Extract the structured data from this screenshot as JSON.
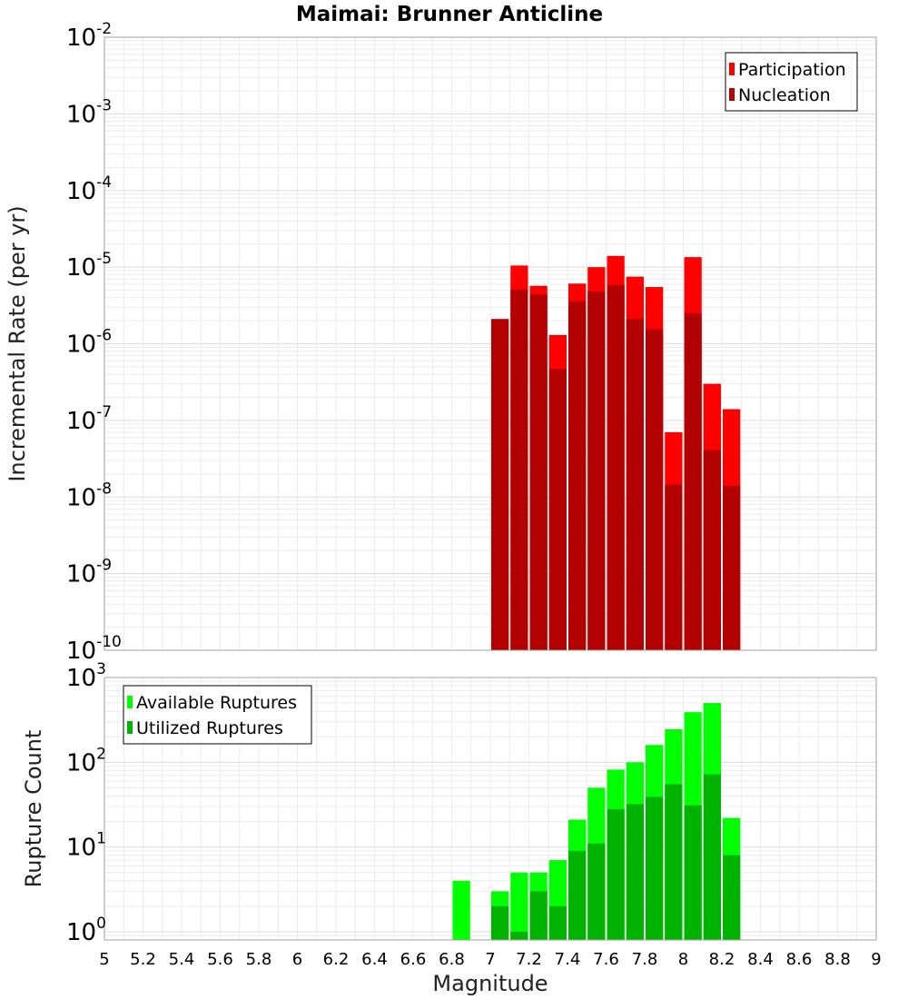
{
  "chart_data": [
    {
      "type": "bar",
      "title": "Maimai: Brunner Anticline",
      "ylabel": "Incremental Rate (per yr)",
      "yscale": "log",
      "ylim": [
        1e-10,
        0.01
      ],
      "xlim": [
        5,
        9
      ],
      "yticks": [
        {
          "base": "10",
          "exp": "-10",
          "value": 1e-10
        },
        {
          "base": "10",
          "exp": "-9",
          "value": 1e-09
        },
        {
          "base": "10",
          "exp": "-8",
          "value": 1e-08
        },
        {
          "base": "10",
          "exp": "-7",
          "value": 1e-07
        },
        {
          "base": "10",
          "exp": "-6",
          "value": 1e-06
        },
        {
          "base": "10",
          "exp": "-5",
          "value": 1e-05
        },
        {
          "base": "10",
          "exp": "-4",
          "value": 0.0001
        },
        {
          "base": "10",
          "exp": "-3",
          "value": 0.001
        },
        {
          "base": "10",
          "exp": "-2",
          "value": 0.01
        }
      ],
      "legend_position": "top-right",
      "grid": true,
      "bin_width": 0.1,
      "x": [
        7.05,
        7.15,
        7.25,
        7.35,
        7.45,
        7.55,
        7.65,
        7.75,
        7.85,
        7.95,
        8.05,
        8.15,
        8.25
      ],
      "series": [
        {
          "name": "Participation",
          "color": "#ff0000",
          "values": [
            2.1e-06,
            1.05e-05,
            5.7e-06,
            1.3e-06,
            6.1e-06,
            1e-05,
            1.4e-05,
            7.5e-06,
            5.5e-06,
            7e-08,
            1.35e-05,
            3e-07,
            1.4e-07
          ]
        },
        {
          "name": "Nucleation",
          "color": "#b30000",
          "values": [
            2.1e-06,
            5.1e-06,
            4.4e-06,
            4.7e-07,
            3.6e-06,
            4.8e-06,
            5.8e-06,
            2.1e-06,
            1.55e-06,
            1.45e-08,
            2.5e-06,
            4.1e-08,
            1.4e-08
          ]
        }
      ]
    },
    {
      "type": "bar",
      "xlabel": "Magnitude",
      "ylabel": "Rupture Count",
      "yscale": "log",
      "ylim": [
        0.8,
        1000
      ],
      "xlim": [
        5,
        9
      ],
      "yticks": [
        {
          "base": "10",
          "exp": "0",
          "value": 1
        },
        {
          "base": "10",
          "exp": "1",
          "value": 10
        },
        {
          "base": "10",
          "exp": "2",
          "value": 100
        },
        {
          "base": "10",
          "exp": "3",
          "value": 1000
        }
      ],
      "xticks": [
        "5",
        "5.2",
        "5.4",
        "5.6",
        "5.8",
        "6",
        "6.2",
        "6.4",
        "6.6",
        "6.8",
        "7",
        "7.2",
        "7.4",
        "7.6",
        "7.8",
        "8",
        "8.2",
        "8.4",
        "8.6",
        "8.8",
        "9"
      ],
      "legend_position": "top-left",
      "grid": true,
      "bin_width": 0.1,
      "x": [
        6.85,
        7.05,
        7.15,
        7.25,
        7.35,
        7.45,
        7.55,
        7.65,
        7.75,
        7.85,
        7.95,
        8.05,
        8.15,
        8.25
      ],
      "series": [
        {
          "name": "Available Ruptures",
          "color": "#00ff00",
          "values": [
            4,
            3,
            5,
            5,
            7,
            21,
            50,
            82,
            100,
            160,
            245,
            390,
            500,
            22
          ]
        },
        {
          "name": "Utilized Ruptures",
          "color": "#00b300",
          "values": [
            0,
            2,
            1,
            3,
            2,
            9,
            11,
            28,
            32,
            39,
            55,
            31,
            72,
            8
          ]
        }
      ]
    }
  ]
}
